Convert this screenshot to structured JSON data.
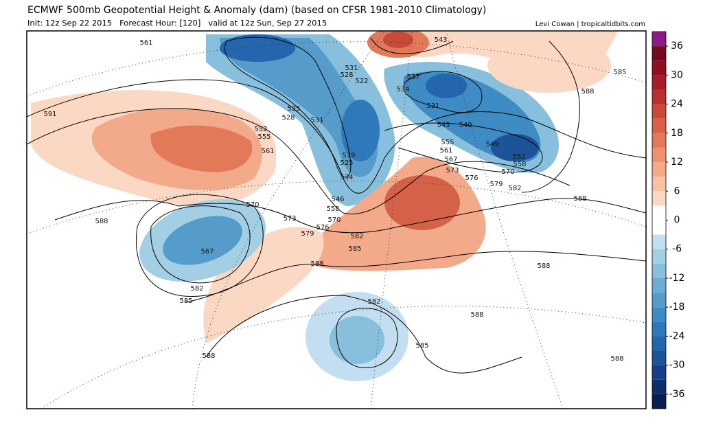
{
  "header": {
    "title": "ECMWF 500mb Geopotential Height & Anomaly (dam) (based on CFSR 1981-2010 Climatology)",
    "subtitle": "Init: 12z Sep 22 2015   Forecast Hour: [120]   valid at 12z Sun, Sep 27 2015",
    "credit": "Levi Cowan | tropicaltidbits.com"
  },
  "colorbar": {
    "lim": [
      -39,
      39
    ],
    "levels": [
      -39,
      -36,
      -33,
      -30,
      -27,
      -24,
      -21,
      -18,
      -15,
      -12,
      -9,
      -6,
      -3,
      0,
      3,
      6,
      9,
      12,
      15,
      18,
      21,
      24,
      27,
      30,
      33,
      36,
      39
    ],
    "colors": [
      "#0b1f4f",
      "#0e2e6b",
      "#153f86",
      "#1c5399",
      "#2466ad",
      "#2f78b9",
      "#3f8bc3",
      "#559ccb",
      "#6dadd4",
      "#88bfdd",
      "#a3cfe5",
      "#c2def0",
      "#ffffff",
      "#ffffff",
      "#fbd8c4",
      "#f8c1a6",
      "#f3aa8a",
      "#ec926f",
      "#e27a5a",
      "#d66149",
      "#c9493b",
      "#b8312f",
      "#a51d28",
      "#8e0f23",
      "#730a1f",
      "#8b1a89"
    ],
    "ticks": [
      36,
      30,
      24,
      18,
      12,
      6,
      0,
      -6,
      -12,
      -18,
      -24,
      -30,
      -36
    ]
  },
  "contour_labels": [
    561,
    591,
    588,
    552,
    555,
    561,
    525,
    528,
    531,
    531,
    528,
    522,
    519,
    525,
    534,
    546,
    558,
    570,
    573,
    570,
    576,
    579,
    582,
    585,
    588,
    567,
    582,
    585,
    588,
    582,
    585,
    588,
    588,
    588,
    588,
    585,
    588,
    543,
    537,
    534,
    531,
    543,
    540,
    549,
    555,
    561,
    567,
    573,
    576,
    579,
    582,
    570,
    552,
    558
  ]
}
